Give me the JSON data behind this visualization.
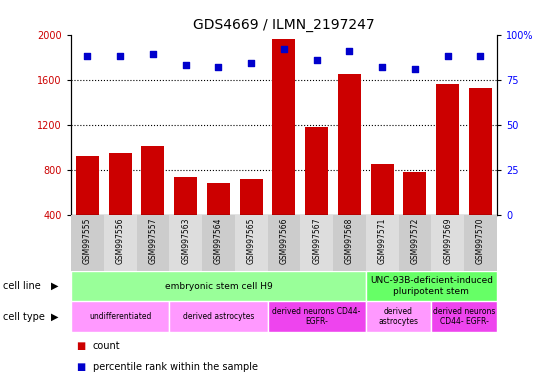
{
  "title": "GDS4669 / ILMN_2197247",
  "samples": [
    "GSM997555",
    "GSM997556",
    "GSM997557",
    "GSM997563",
    "GSM997564",
    "GSM997565",
    "GSM997566",
    "GSM997567",
    "GSM997568",
    "GSM997571",
    "GSM997572",
    "GSM997569",
    "GSM997570"
  ],
  "counts": [
    920,
    950,
    1010,
    740,
    680,
    720,
    1960,
    1180,
    1650,
    850,
    780,
    1560,
    1530
  ],
  "percentile": [
    88,
    88,
    89,
    83,
    82,
    84,
    92,
    86,
    91,
    82,
    81,
    88,
    88
  ],
  "ylim_left": [
    400,
    2000
  ],
  "ylim_right": [
    0,
    100
  ],
  "yticks_left": [
    400,
    800,
    1200,
    1600,
    2000
  ],
  "yticks_right": [
    0,
    25,
    50,
    75,
    100
  ],
  "bar_color": "#cc0000",
  "dot_color": "#0000cc",
  "grid_lines": [
    800,
    1200,
    1600
  ],
  "cell_line_groups": [
    {
      "label": "embryonic stem cell H9",
      "start": 0,
      "end": 8,
      "color": "#99ff99"
    },
    {
      "label": "UNC-93B-deficient-induced\npluripotent stem",
      "start": 9,
      "end": 12,
      "color": "#66ff66"
    }
  ],
  "cell_type_groups": [
    {
      "label": "undifferentiated",
      "start": 0,
      "end": 2,
      "color": "#ff99ff"
    },
    {
      "label": "derived astrocytes",
      "start": 3,
      "end": 5,
      "color": "#ff99ff"
    },
    {
      "label": "derived neurons CD44-\nEGFR-",
      "start": 6,
      "end": 8,
      "color": "#ee44ee"
    },
    {
      "label": "derived\nastrocytes",
      "start": 9,
      "end": 10,
      "color": "#ff99ff"
    },
    {
      "label": "derived neurons\nCD44- EGFR-",
      "start": 11,
      "end": 12,
      "color": "#ee44ee"
    }
  ],
  "legend_count_label": "count",
  "legend_pct_label": "percentile rank within the sample",
  "cell_line_label": "cell line",
  "cell_type_label": "cell type",
  "tick_bg_even": "#cccccc",
  "tick_bg_odd": "#dddddd"
}
